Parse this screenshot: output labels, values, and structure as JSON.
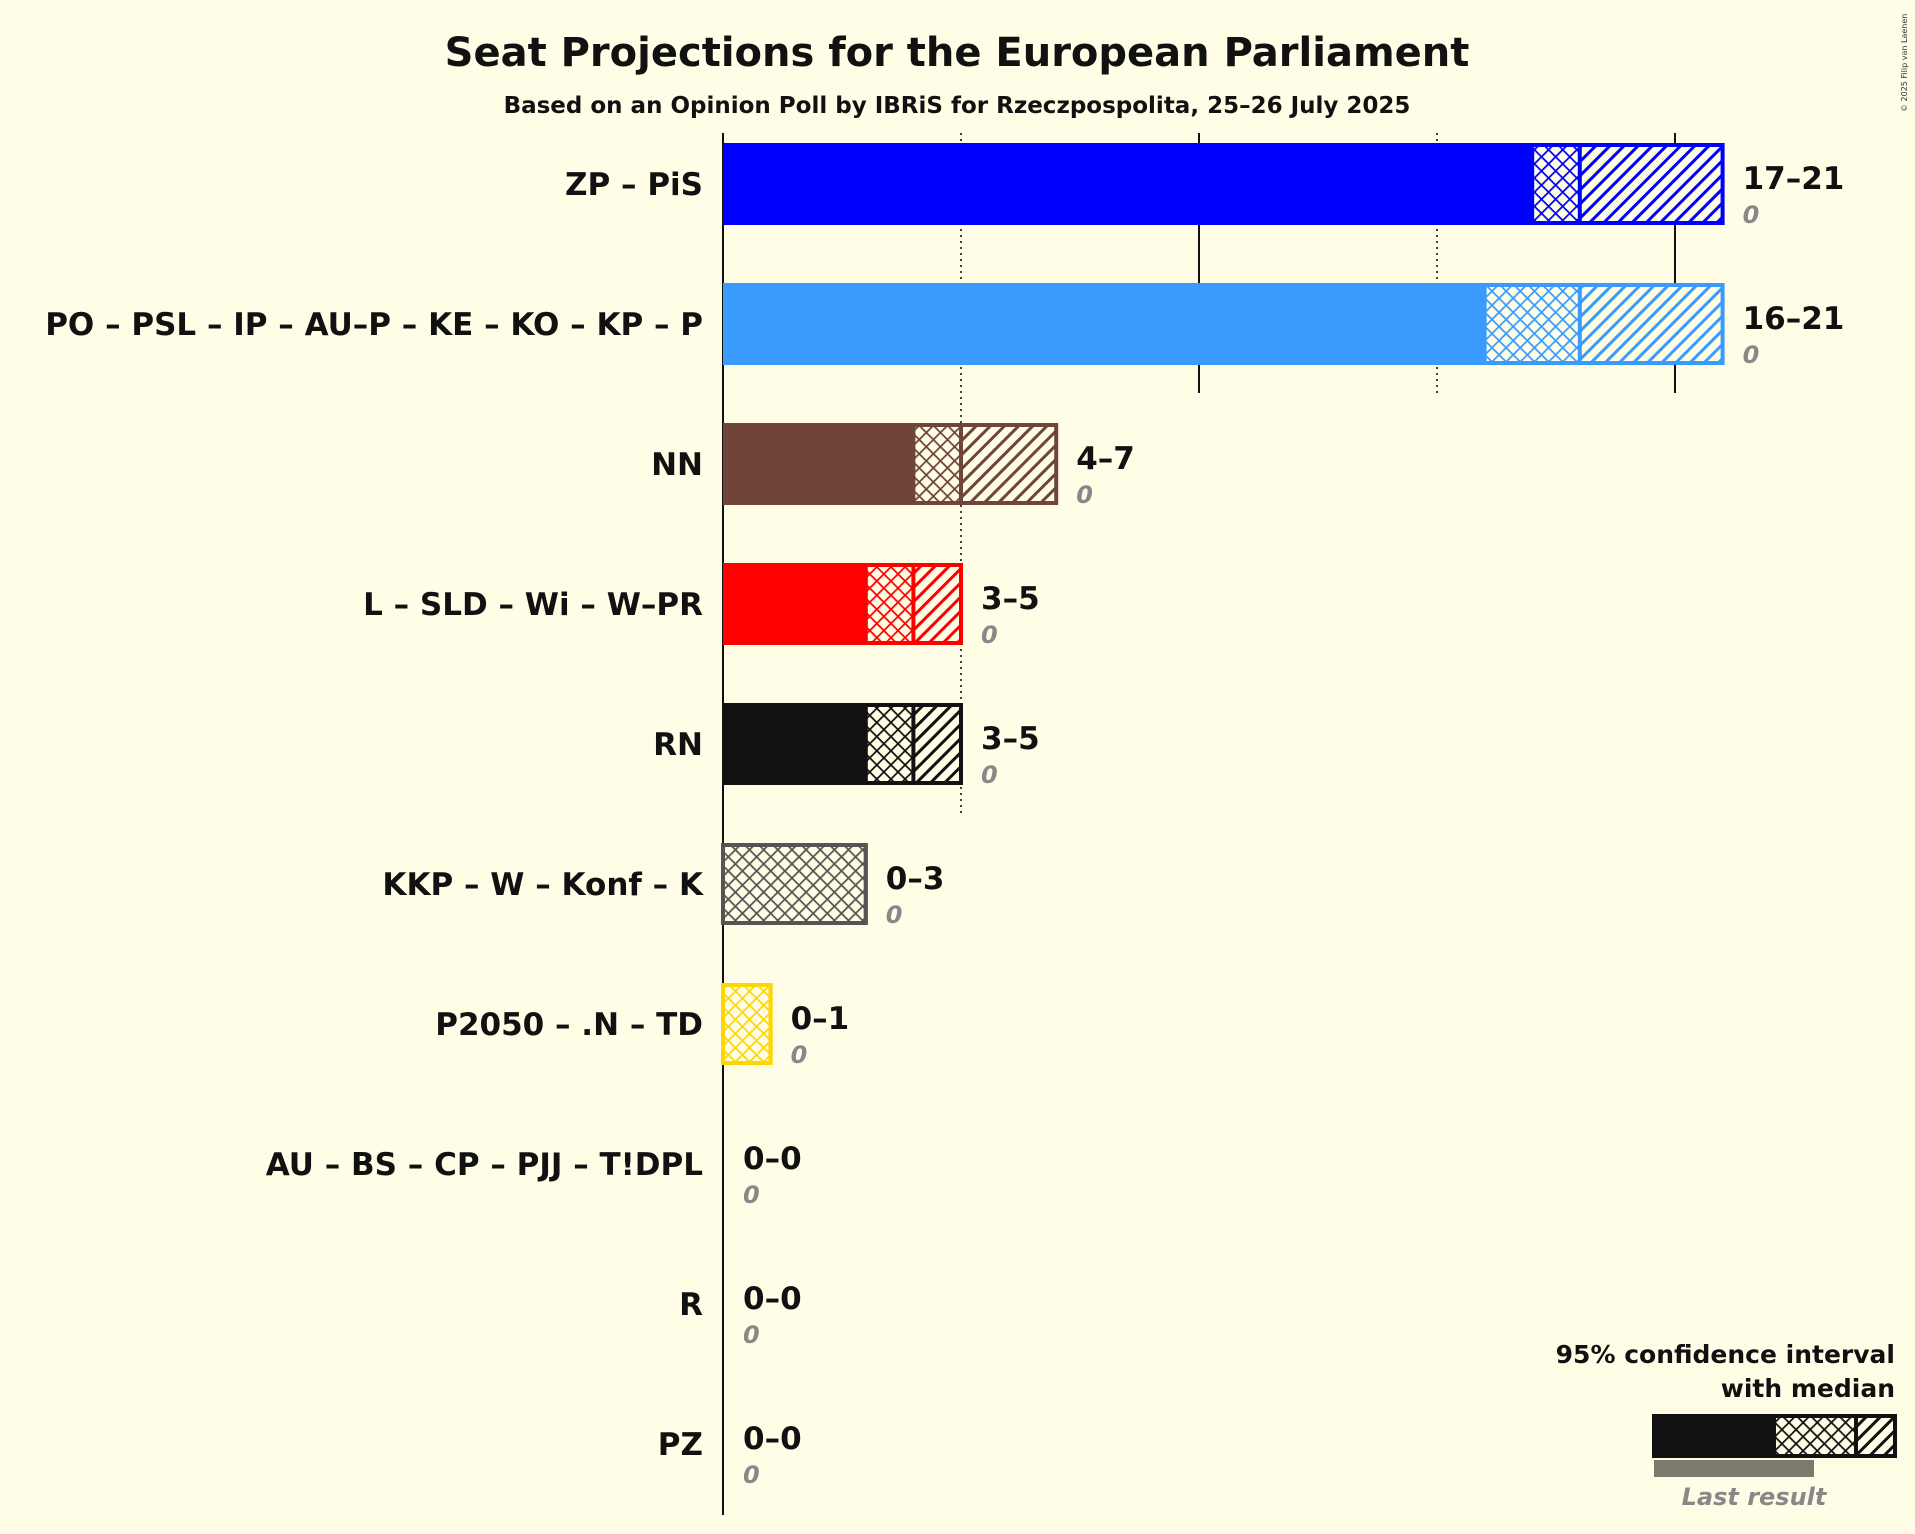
{
  "copyright": "© 2025 Filip van Laenen",
  "chart_data": {
    "type": "bar",
    "orientation": "horizontal",
    "title": "Seat Projections for the European Parliament",
    "subtitle": "Based on an Opinion Poll by IBRiS for Rzeczpospolita, 25–26 July 2025",
    "xlim": [
      0,
      21
    ],
    "gridlines": [
      5,
      10,
      15,
      20
    ],
    "parties": [
      {
        "name": "ZP – PiS",
        "color": "#0000ff",
        "low": 17,
        "median": 18,
        "high": 21,
        "range_label": "17–21",
        "last_result": 0,
        "last_label": "0"
      },
      {
        "name": "PO – PSL – IP – AU–P – KE – KO – KP – P",
        "color": "#3a9bff",
        "low": 16,
        "median": 18,
        "high": 21,
        "range_label": "16–21",
        "last_result": 0,
        "last_label": "0"
      },
      {
        "name": "NN",
        "color": "#6e4538",
        "low": 4,
        "median": 5,
        "high": 7,
        "range_label": "4–7",
        "last_result": 0,
        "last_label": "0"
      },
      {
        "name": "L – SLD – Wi – W–PR",
        "color": "#ff0000",
        "low": 3,
        "median": 4,
        "high": 5,
        "range_label": "3–5",
        "last_result": 0,
        "last_label": "0"
      },
      {
        "name": "RN",
        "color": "#111111",
        "low": 3,
        "median": 4,
        "high": 5,
        "range_label": "3–5",
        "last_result": 0,
        "last_label": "0"
      },
      {
        "name": "KKP – W – Konf – K",
        "color": "#555555",
        "low": 0,
        "median": 3,
        "high": 3,
        "range_label": "0–3",
        "last_result": 0,
        "last_label": "0"
      },
      {
        "name": "P2050 – .N – TD",
        "color": "#ffd700",
        "low": 0,
        "median": 1,
        "high": 1,
        "range_label": "0–1",
        "last_result": 0,
        "last_label": "0"
      },
      {
        "name": "AU – BS – CP – PJJ – T!DPL",
        "color": "#888888",
        "low": 0,
        "median": 0,
        "high": 0,
        "range_label": "0–0",
        "last_result": 0,
        "last_label": "0"
      },
      {
        "name": "R",
        "color": "#888888",
        "low": 0,
        "median": 0,
        "high": 0,
        "range_label": "0–0",
        "last_result": 0,
        "last_label": "0"
      },
      {
        "name": "PZ",
        "color": "#888888",
        "low": 0,
        "median": 0,
        "high": 0,
        "range_label": "0–0",
        "last_result": 0,
        "last_label": "0"
      }
    ],
    "legend": {
      "line1": "95% confidence interval",
      "line2": "with median",
      "last_result_label": "Last result",
      "placement": "bottom-right"
    }
  }
}
